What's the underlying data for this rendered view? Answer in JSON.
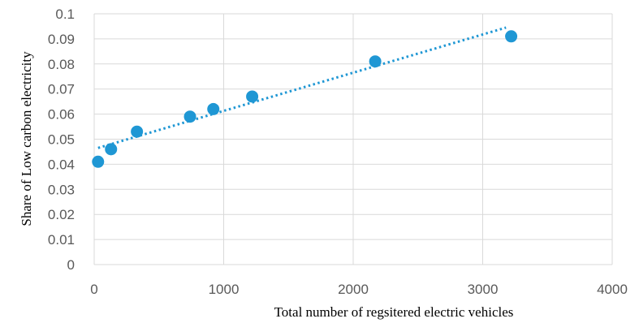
{
  "chart_data": {
    "type": "scatter",
    "title": "",
    "xlabel": "Total number of regsitered electric vehicles",
    "ylabel": "Share of Low carbon electricity",
    "xlim": [
      0,
      4000
    ],
    "ylim": [
      0,
      0.1
    ],
    "x_ticks": [
      0,
      1000,
      2000,
      3000,
      4000
    ],
    "x_tick_labels": [
      "0",
      "1000",
      "2000",
      "3000",
      "4000"
    ],
    "y_ticks": [
      0,
      0.01,
      0.02,
      0.03,
      0.04,
      0.05,
      0.06,
      0.07,
      0.08,
      0.09,
      0.1
    ],
    "y_tick_labels": [
      "0",
      "0.01",
      "0.02",
      "0.03",
      "0.04",
      "0.05",
      "0.06",
      "0.07",
      "0.08",
      "0.09",
      "0.1"
    ],
    "grid": true,
    "legend": "none",
    "series": [
      {
        "x": [
          30,
          130,
          330,
          740,
          920,
          1220,
          2170,
          3220
        ],
        "y": [
          0.041,
          0.046,
          0.053,
          0.059,
          0.062,
          0.067,
          0.081,
          0.091
        ]
      }
    ],
    "trendline": {
      "type": "linear",
      "style": "dotted",
      "x": [
        30,
        3180
      ],
      "y": [
        0.0465,
        0.0945
      ]
    },
    "colors": {
      "marker": "#1F97D4",
      "trendline": "#1F97D4",
      "grid": "#D9D9D9"
    }
  }
}
